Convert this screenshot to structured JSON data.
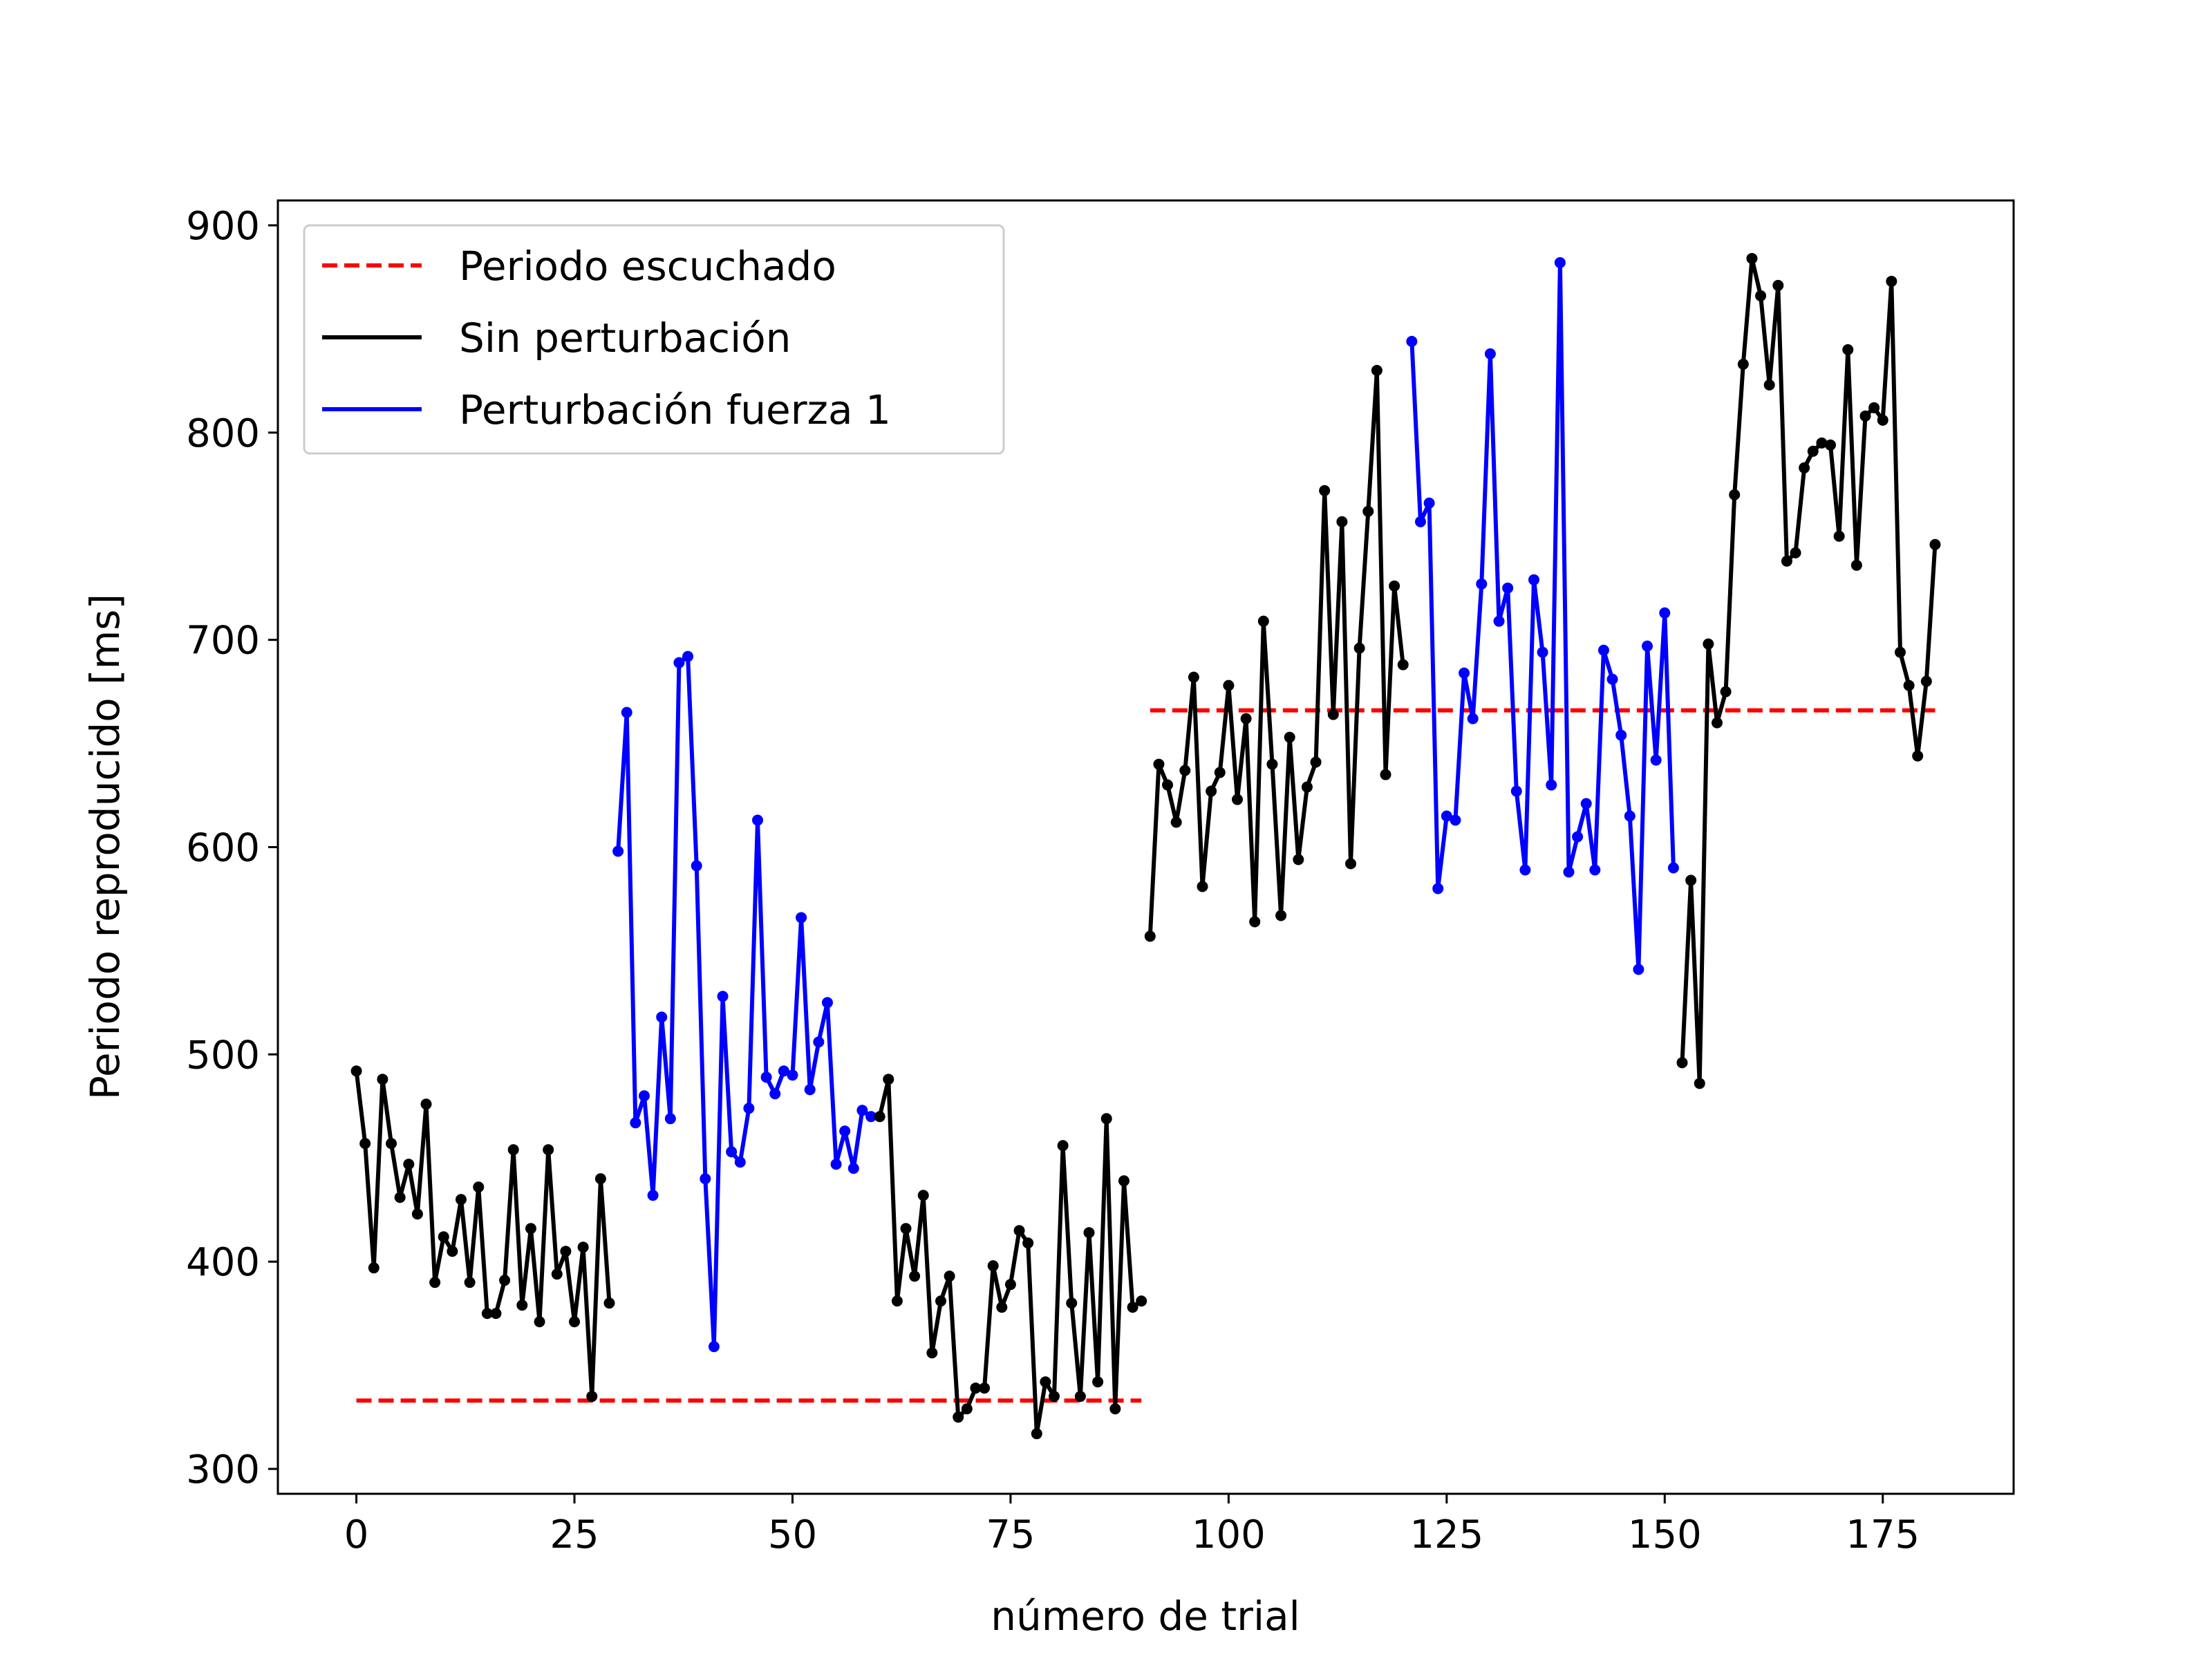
{
  "chart_data": {
    "type": "line",
    "title": "",
    "xlabel": "número de trial",
    "ylabel": "Periodo reproducido [ms]",
    "xlim": [
      -9,
      190
    ],
    "ylim": [
      288,
      912
    ],
    "xticks": [
      0,
      25,
      50,
      75,
      100,
      125,
      150,
      175
    ],
    "yticks": [
      300,
      400,
      500,
      600,
      700,
      800,
      900
    ],
    "grid": false,
    "legend": {
      "position": "top-left",
      "entries": [
        {
          "label": "Periodo escuchado",
          "color": "#ff0000",
          "style": "dashed"
        },
        {
          "label": "Sin perturbación",
          "color": "#000000",
          "style": "solid"
        },
        {
          "label": "Perturbación fuerza 1",
          "color": "#0000ff",
          "style": "solid"
        }
      ]
    },
    "reference_lines": [
      {
        "x": [
          0,
          90
        ],
        "y": 333,
        "color": "#ff0000"
      },
      {
        "x": [
          91,
          181
        ],
        "y": 666,
        "color": "#ff0000"
      }
    ],
    "segments": [
      {
        "color": "#000000",
        "x0": 0,
        "y": [
          492,
          457,
          397,
          488,
          457,
          431,
          447,
          423,
          476,
          390,
          412,
          405,
          430,
          390,
          436,
          375,
          375,
          391,
          454,
          379,
          416,
          371,
          454,
          394,
          405,
          371,
          407,
          335,
          440,
          380
        ]
      },
      {
        "color": "#0000ff",
        "x0": 30,
        "y": [
          598,
          665,
          467,
          480,
          432,
          518,
          469,
          689,
          692,
          591,
          440,
          359,
          528,
          453,
          448,
          474,
          613,
          489,
          481,
          492,
          490,
          566,
          483,
          506,
          525,
          447,
          463,
          445,
          473,
          470
        ]
      },
      {
        "color": "#000000",
        "x0": 60,
        "y": [
          470,
          488,
          381,
          416,
          393,
          432,
          356,
          381,
          393,
          325,
          329,
          339,
          339,
          398,
          378,
          389,
          415,
          409,
          317,
          342,
          335,
          456,
          380,
          335,
          414,
          342,
          469,
          329,
          439,
          378,
          381
        ]
      },
      {
        "color": "#000000",
        "x0": 91,
        "y": [
          557,
          640,
          630,
          612,
          637,
          682,
          581,
          627,
          636,
          678,
          623,
          662,
          564,
          709,
          640,
          567,
          653,
          594,
          629,
          641,
          772,
          664,
          757,
          592,
          696,
          762,
          830,
          635,
          726,
          688
        ]
      },
      {
        "color": "#0000ff",
        "x0": 121,
        "y": [
          844,
          757,
          766,
          580,
          615,
          613,
          684,
          662,
          727,
          838,
          709,
          725,
          627,
          589,
          729,
          694,
          630,
          882,
          588,
          605,
          621,
          589,
          695,
          681,
          654,
          615,
          541,
          697,
          642,
          713,
          590
        ]
      },
      {
        "color": "#000000",
        "x0": 152,
        "y": [
          496,
          584,
          486,
          698,
          660,
          675,
          770,
          833,
          884,
          866,
          823,
          871,
          738,
          742,
          783,
          791,
          795,
          794,
          750,
          840,
          736,
          808,
          812,
          806,
          873,
          694,
          678,
          644,
          680,
          746
        ]
      }
    ]
  }
}
